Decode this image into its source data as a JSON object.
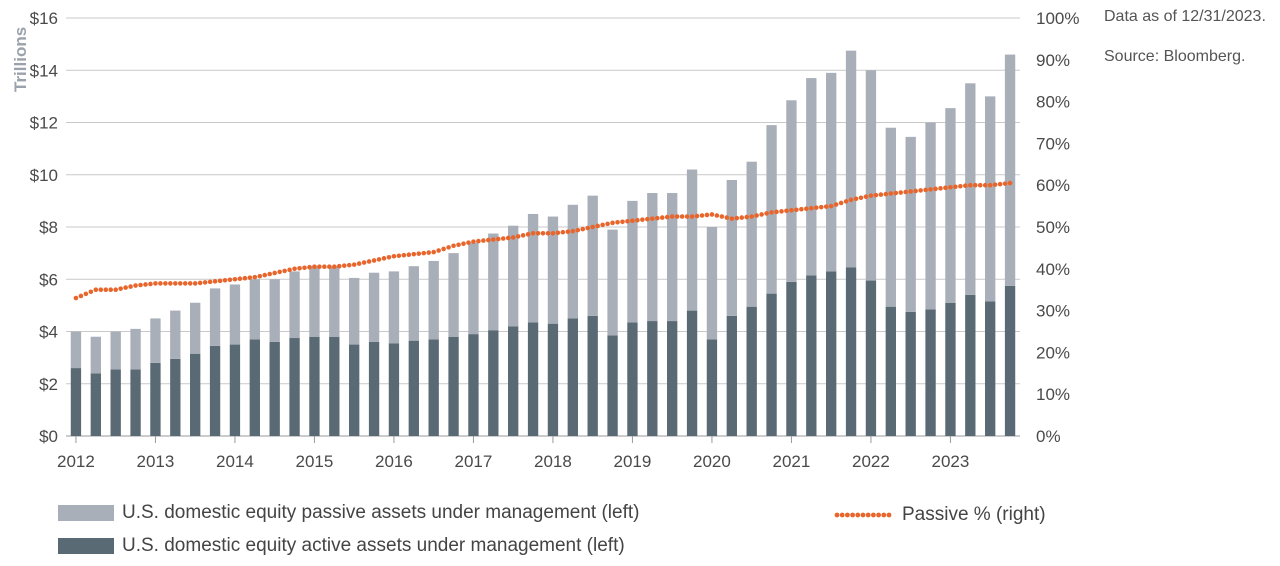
{
  "notes": {
    "data_as_of": "Data as of 12/31/2023.",
    "source": "Source: Bloomberg."
  },
  "colors": {
    "passive": "#a9afb8",
    "active": "#5a6a75",
    "line": "#e8652b",
    "grid": "#c9c9c9"
  },
  "legend": {
    "passive": "U.S. domestic equity passive assets under management (left)",
    "active": "U.S. domestic equity active assets under management (left)",
    "line": "Passive % (right)"
  },
  "chart_data": {
    "type": "bar",
    "stacked": true,
    "ylabel": "Trillions",
    "ylim": [
      0,
      16
    ],
    "y_ticks": [
      "$0",
      "$2",
      "$4",
      "$6",
      "$8",
      "$10",
      "$12",
      "$14",
      "$16"
    ],
    "y2lim": [
      0,
      100
    ],
    "y2_ticks": [
      "0%",
      "10%",
      "20%",
      "30%",
      "40%",
      "50%",
      "60%",
      "70%",
      "80%",
      "90%",
      "100%"
    ],
    "x_ticks": [
      "2012",
      "2013",
      "2014",
      "2015",
      "2016",
      "2017",
      "2018",
      "2019",
      "2020",
      "2021",
      "2022",
      "2023"
    ],
    "grid": true,
    "legend_position": "bottom",
    "series": [
      {
        "name": "U.S. domestic equity active assets under management (left)",
        "axis": "left",
        "values": [
          2.6,
          2.4,
          2.55,
          2.55,
          2.8,
          2.95,
          3.15,
          3.45,
          3.5,
          3.7,
          3.6,
          3.75,
          3.8,
          3.8,
          3.5,
          3.6,
          3.55,
          3.65,
          3.7,
          3.8,
          3.9,
          4.05,
          4.2,
          4.35,
          4.3,
          4.5,
          4.6,
          3.85,
          4.35,
          4.4,
          4.4,
          4.8,
          3.7,
          4.6,
          4.95,
          5.45,
          5.9,
          6.15,
          6.3,
          6.45,
          5.95,
          4.95,
          4.75,
          4.85,
          5.1,
          5.4,
          5.15,
          5.75
        ]
      },
      {
        "name": "U.S. domestic equity passive assets under management (left)",
        "axis": "left",
        "values": [
          1.4,
          1.4,
          1.45,
          1.55,
          1.7,
          1.85,
          1.95,
          2.2,
          2.3,
          2.3,
          2.4,
          2.55,
          2.7,
          2.7,
          2.55,
          2.65,
          2.75,
          2.85,
          3.0,
          3.2,
          3.5,
          3.7,
          3.85,
          4.15,
          4.1,
          4.35,
          4.6,
          4.05,
          4.65,
          4.9,
          4.9,
          5.4,
          4.3,
          5.2,
          5.55,
          6.45,
          6.95,
          7.55,
          7.6,
          8.3,
          8.05,
          6.85,
          6.7,
          7.15,
          7.45,
          8.1,
          7.85,
          8.85
        ]
      },
      {
        "name": "Passive % (right)",
        "axis": "right",
        "type": "line",
        "values": [
          33,
          35,
          35,
          36,
          36.5,
          36.5,
          36.5,
          37,
          37.5,
          38,
          39,
          40,
          40.5,
          40.5,
          41,
          42,
          43,
          43.5,
          44,
          45.5,
          46.5,
          47,
          47.5,
          48.5,
          48.5,
          49,
          50,
          51,
          51.5,
          52,
          52.5,
          52.5,
          53,
          52,
          52.5,
          53.5,
          54,
          54.5,
          55,
          56.5,
          57.5,
          58,
          58.5,
          59,
          59.5,
          60,
          60,
          60.5
        ]
      }
    ]
  }
}
